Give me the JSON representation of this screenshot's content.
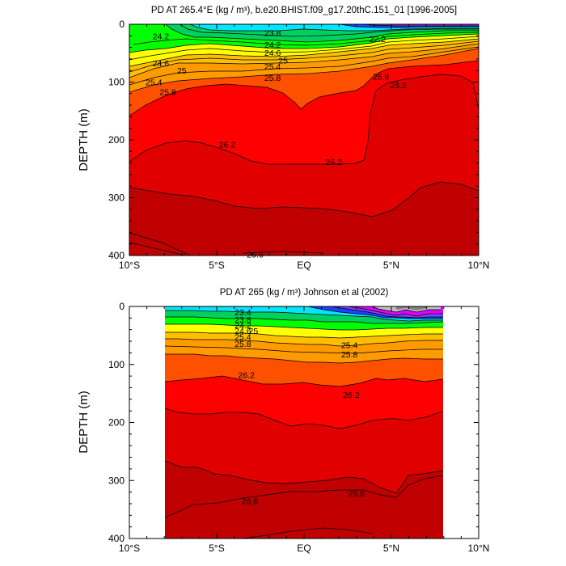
{
  "chart_data": [
    {
      "type": "contour",
      "title": "PD AT 265.4°E (kg / m³), b.e20.BHIST.f09_g17.20thC.151_01 [1996-2005]",
      "xlabel": "",
      "ylabel": "DEPTH (m)",
      "x_ticks": [
        "10°S",
        "5°S",
        "EQ",
        "5°N",
        "10°N"
      ],
      "y_ticks": [
        "0",
        "100",
        "200",
        "300",
        "400"
      ],
      "xlim": [
        -10,
        10
      ],
      "ylim": [
        400,
        0
      ],
      "y_inverted": true,
      "data_extent_lat": [
        -10,
        10
      ],
      "isopycnal_depths_m": {
        "lat": [
          -10,
          -8,
          -6,
          -4,
          -2,
          0,
          2,
          3.5,
          4.5,
          6,
          8,
          10
        ],
        "23.8": [
          6,
          4,
          6,
          8,
          8,
          8,
          8,
          14,
          26,
          30,
          34,
          36
        ],
        "24.6": [
          38,
          22,
          28,
          34,
          36,
          40,
          42,
          40,
          48,
          50,
          50,
          50
        ],
        "25.4": [
          70,
          56,
          60,
          64,
          66,
          70,
          66,
          56,
          56,
          58,
          58,
          60
        ],
        "25.8": [
          100,
          74,
          80,
          82,
          84,
          88,
          80,
          66,
          64,
          64,
          62,
          64
        ],
        "26.0": [
          160,
          110,
          100,
          100,
          112,
          150,
          112,
          100,
          100,
          95,
          92,
          140
        ],
        "26.2": [
          200,
          180,
          175,
          210,
          228,
          240,
          238,
          150,
          100,
          97,
          90,
          135
        ],
        "26.4": [
          300,
          275,
          270,
          275,
          290,
          305,
          310,
          320,
          300,
          275,
          250,
          290
        ],
        "26.6": [
          360,
          385,
          400,
          400,
          400,
          400,
          400,
          400,
          400,
          400,
          400,
          400
        ]
      },
      "contour_labels": [
        {
          "text": "24.2",
          "lat": -8.2,
          "depth": 20
        },
        {
          "text": "23.8",
          "lat": -1.8,
          "depth": 15
        },
        {
          "text": "24.2",
          "lat": -1.8,
          "depth": 35
        },
        {
          "text": "24.6",
          "lat": -1.8,
          "depth": 49
        },
        {
          "text": "25",
          "lat": -1.2,
          "depth": 62
        },
        {
          "text": "25.4",
          "lat": -1.8,
          "depth": 73
        },
        {
          "text": "25.8",
          "lat": -1.8,
          "depth": 92
        },
        {
          "text": "24.6",
          "lat": -8.2,
          "depth": 67
        },
        {
          "text": "25",
          "lat": -7.0,
          "depth": 80
        },
        {
          "text": "25.4",
          "lat": -8.6,
          "depth": 100
        },
        {
          "text": "25.8",
          "lat": -7.8,
          "depth": 117
        },
        {
          "text": "22.2",
          "lat": 4.2,
          "depth": 25
        },
        {
          "text": "25.8",
          "lat": 4.4,
          "depth": 90
        },
        {
          "text": "26.2",
          "lat": 5.4,
          "depth": 105
        },
        {
          "text": "26.2",
          "lat": -4.4,
          "depth": 208
        },
        {
          "text": "26.2",
          "lat": 1.7,
          "depth": 238
        },
        {
          "text": "26.6",
          "lat": -2.8,
          "depth": 398
        }
      ]
    },
    {
      "type": "contour",
      "title": "PD AT 265 (kg / m³) Johnson et al (2002)",
      "xlabel": "",
      "ylabel": "DEPTH (m)",
      "x_ticks": [
        "10°S",
        "5°S",
        "EQ",
        "5°N",
        "10°N"
      ],
      "y_ticks": [
        "0",
        "100",
        "200",
        "300",
        "400"
      ],
      "xlim": [
        -10,
        10
      ],
      "ylim": [
        400,
        0
      ],
      "y_inverted": true,
      "data_extent_lat": [
        -8,
        8
      ],
      "isopycnal_depths_m": {
        "lat": [
          -8,
          -6,
          -4,
          -2,
          0,
          2,
          3.5,
          4.5,
          6,
          8
        ],
        "23.4": [
          6,
          8,
          8,
          8,
          10,
          10,
          12,
          24,
          28,
          30
        ],
        "24.6": [
          24,
          26,
          28,
          30,
          30,
          32,
          34,
          40,
          38,
          36
        ],
        "25.4": [
          42,
          44,
          48,
          50,
          50,
          50,
          48,
          52,
          50,
          48
        ],
        "25.8": [
          60,
          62,
          66,
          70,
          70,
          72,
          70,
          66,
          62,
          58
        ],
        "26.0": [
          90,
          94,
          98,
          100,
          98,
          96,
          96,
          92,
          90,
          88
        ],
        "26.2": [
          130,
          118,
          118,
          132,
          142,
          152,
          150,
          135,
          145,
          150
        ],
        "26.4": [
          250,
          270,
          300,
          285,
          285,
          290,
          300,
          320,
          300,
          290
        ],
        "26.6": [
          370,
          385,
          330,
          325,
          318,
          322,
          315,
          330,
          295,
          285
        ]
      },
      "contour_labels": [
        {
          "text": "23.4",
          "lat": -3.5,
          "depth": 10
        },
        {
          "text": "23.8",
          "lat": -3.5,
          "depth": 22
        },
        {
          "text": "24.2",
          "lat": -3.5,
          "depth": 32
        },
        {
          "text": "24.6",
          "lat": -3.5,
          "depth": 42
        },
        {
          "text": "25",
          "lat": -2.9,
          "depth": 42
        },
        {
          "text": "25.4",
          "lat": -3.5,
          "depth": 52
        },
        {
          "text": "25.8",
          "lat": -3.5,
          "depth": 64
        },
        {
          "text": "25.4",
          "lat": 2.6,
          "depth": 66
        },
        {
          "text": "25.8",
          "lat": 2.6,
          "depth": 82
        },
        {
          "text": "26.2",
          "lat": -3.3,
          "depth": 118
        },
        {
          "text": "26.2",
          "lat": 2.7,
          "depth": 152
        },
        {
          "text": "26.6",
          "lat": -3.1,
          "depth": 335
        },
        {
          "text": "26.6",
          "lat": 3.0,
          "depth": 322
        }
      ]
    }
  ],
  "colors": {
    "c_lt226": "#c0c0c0",
    "c_226": "#e000ff",
    "c_230": "#8040ff",
    "c_234": "#2040ff",
    "c_238": "#00e6ff",
    "c_242": "#00d060",
    "c_246": "#00ff00",
    "c_250": "#ffff00",
    "c_254": "#ffbe00",
    "c_258": "#ff9a00",
    "c_260": "#ff5000",
    "c_262": "#ff0000",
    "c_264": "#e00000",
    "c_266": "#c00000"
  }
}
